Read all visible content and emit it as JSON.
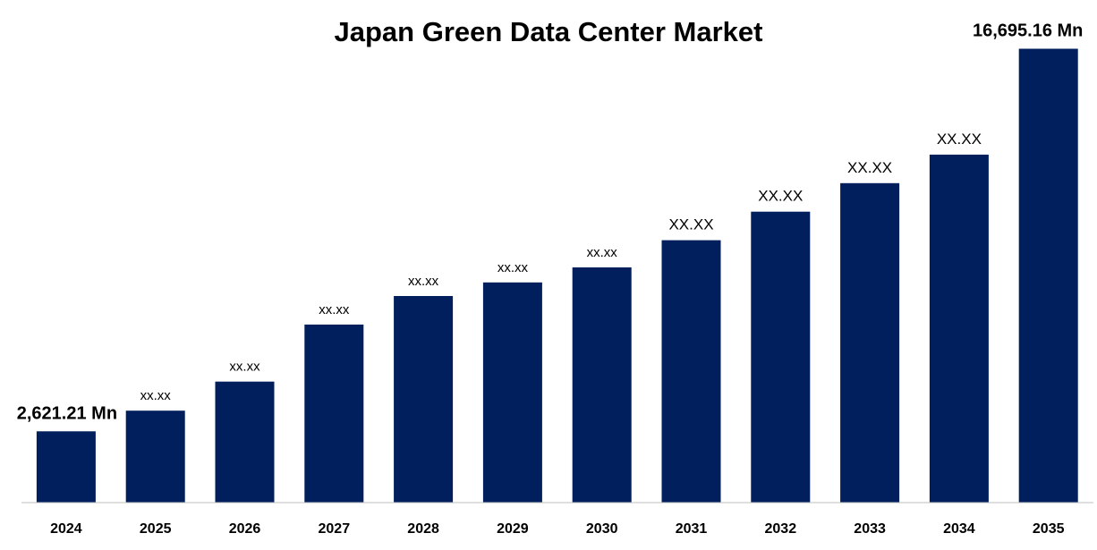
{
  "chart_data": {
    "type": "bar",
    "title": "Japan Green Data Center Market",
    "xlabel": "",
    "ylabel": "",
    "categories": [
      "2024",
      "2025",
      "2026",
      "2027",
      "2028",
      "2029",
      "2030",
      "2031",
      "2032",
      "2033",
      "2034",
      "2035"
    ],
    "values": [
      2621.21,
      3380,
      4450,
      6550,
      7600,
      8100,
      8650,
      9650,
      10700,
      11750,
      12800,
      16695.16
    ],
    "data_labels": [
      "2,621.21 Mn",
      "xx.xx",
      "xx.xx",
      "xx.xx",
      "xx.xx",
      "xx.xx",
      "xx.xx",
      "XX.XX",
      "XX.XX",
      "XX.XX",
      "XX.XX",
      "16,695.16 Mn"
    ],
    "ylim": [
      0,
      17500
    ],
    "bar_color": "#001f5c",
    "grid": false,
    "legend": "none"
  }
}
